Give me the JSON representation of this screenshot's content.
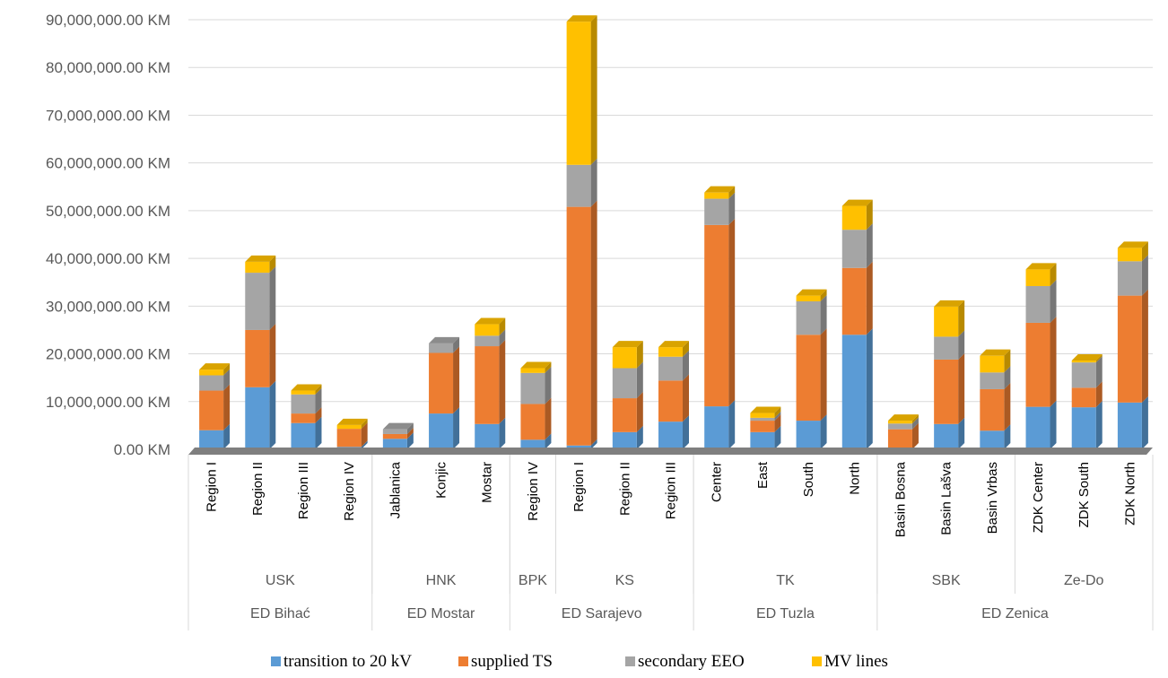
{
  "chart_data": {
    "type": "bar",
    "stacked": true,
    "unit": "KM",
    "ylim": [
      0,
      90000000
    ],
    "yticks": [
      "0.00 KM",
      "10,000,000.00 KM",
      "20,000,000.00 KM",
      "30,000,000.00 KM",
      "40,000,000.00 KM",
      "50,000,000.00 KM",
      "60,000,000.00 KM",
      "70,000,000.00 KM",
      "80,000,000.00 KM",
      "90,000,000.00 KM"
    ],
    "grid": true,
    "legend_position": "bottom",
    "categories": [
      "Region I",
      "Region II",
      "Region III",
      "Region IV",
      "Jablanica",
      "Konjic",
      "Mostar",
      "Region IV",
      "Region I",
      "Region II",
      "Region III",
      "Center",
      "East",
      "South",
      "North",
      "Basin Bosna",
      "Basin Lašva",
      "Basin Vrbas",
      "ZDK Center",
      "ZDK South",
      "ZDK North"
    ],
    "level2": [
      {
        "label": "USK",
        "span": 4
      },
      {
        "label": "HNK",
        "span": 3
      },
      {
        "label": "BPK",
        "span": 1
      },
      {
        "label": "KS",
        "span": 3
      },
      {
        "label": "TK",
        "span": 4
      },
      {
        "label": "SBK",
        "span": 3
      },
      {
        "label": "Ze-Do",
        "span": 3
      }
    ],
    "level3": [
      {
        "label": "ED Bihać",
        "span": 4
      },
      {
        "label": "ED Mostar",
        "span": 3
      },
      {
        "label": "ED Sarajevo",
        "span": 4
      },
      {
        "label": "ED Tuzla",
        "span": 4
      },
      {
        "label": "ED Zenica",
        "span": 6
      }
    ],
    "series": [
      {
        "name": "transition to 20 kV",
        "color": "#5B9BD5",
        "values": [
          4000000,
          13000000,
          5500000,
          500000,
          2200000,
          7500000,
          5300000,
          2000000,
          800000,
          3600000,
          5800000,
          9000000,
          3600000,
          6000000,
          24000000,
          0,
          5300000,
          3900000,
          8900000,
          8800000,
          9800000
        ]
      },
      {
        "name": "supplied TS",
        "color": "#ED7D31",
        "values": [
          8300000,
          12000000,
          2000000,
          3800000,
          1000000,
          12700000,
          16300000,
          7500000,
          50000000,
          7100000,
          8600000,
          38000000,
          2400000,
          18000000,
          14000000,
          4200000,
          13500000,
          8700000,
          17600000,
          4100000,
          22400000
        ]
      },
      {
        "name": "secondary EEO",
        "color": "#A5A5A5",
        "values": [
          3200000,
          12000000,
          4000000,
          0,
          1000000,
          2000000,
          2200000,
          6500000,
          8800000,
          6300000,
          5000000,
          5500000,
          600000,
          7000000,
          8000000,
          1200000,
          4800000,
          3500000,
          7700000,
          5300000,
          7200000
        ]
      },
      {
        "name": "MV lines",
        "color": "#FFC000",
        "values": [
          1200000,
          2300000,
          800000,
          800000,
          0,
          0,
          2400000,
          1000000,
          30000000,
          4400000,
          2000000,
          1300000,
          1000000,
          1200000,
          5000000,
          600000,
          6300000,
          3500000,
          3500000,
          400000,
          2800000
        ]
      }
    ]
  }
}
